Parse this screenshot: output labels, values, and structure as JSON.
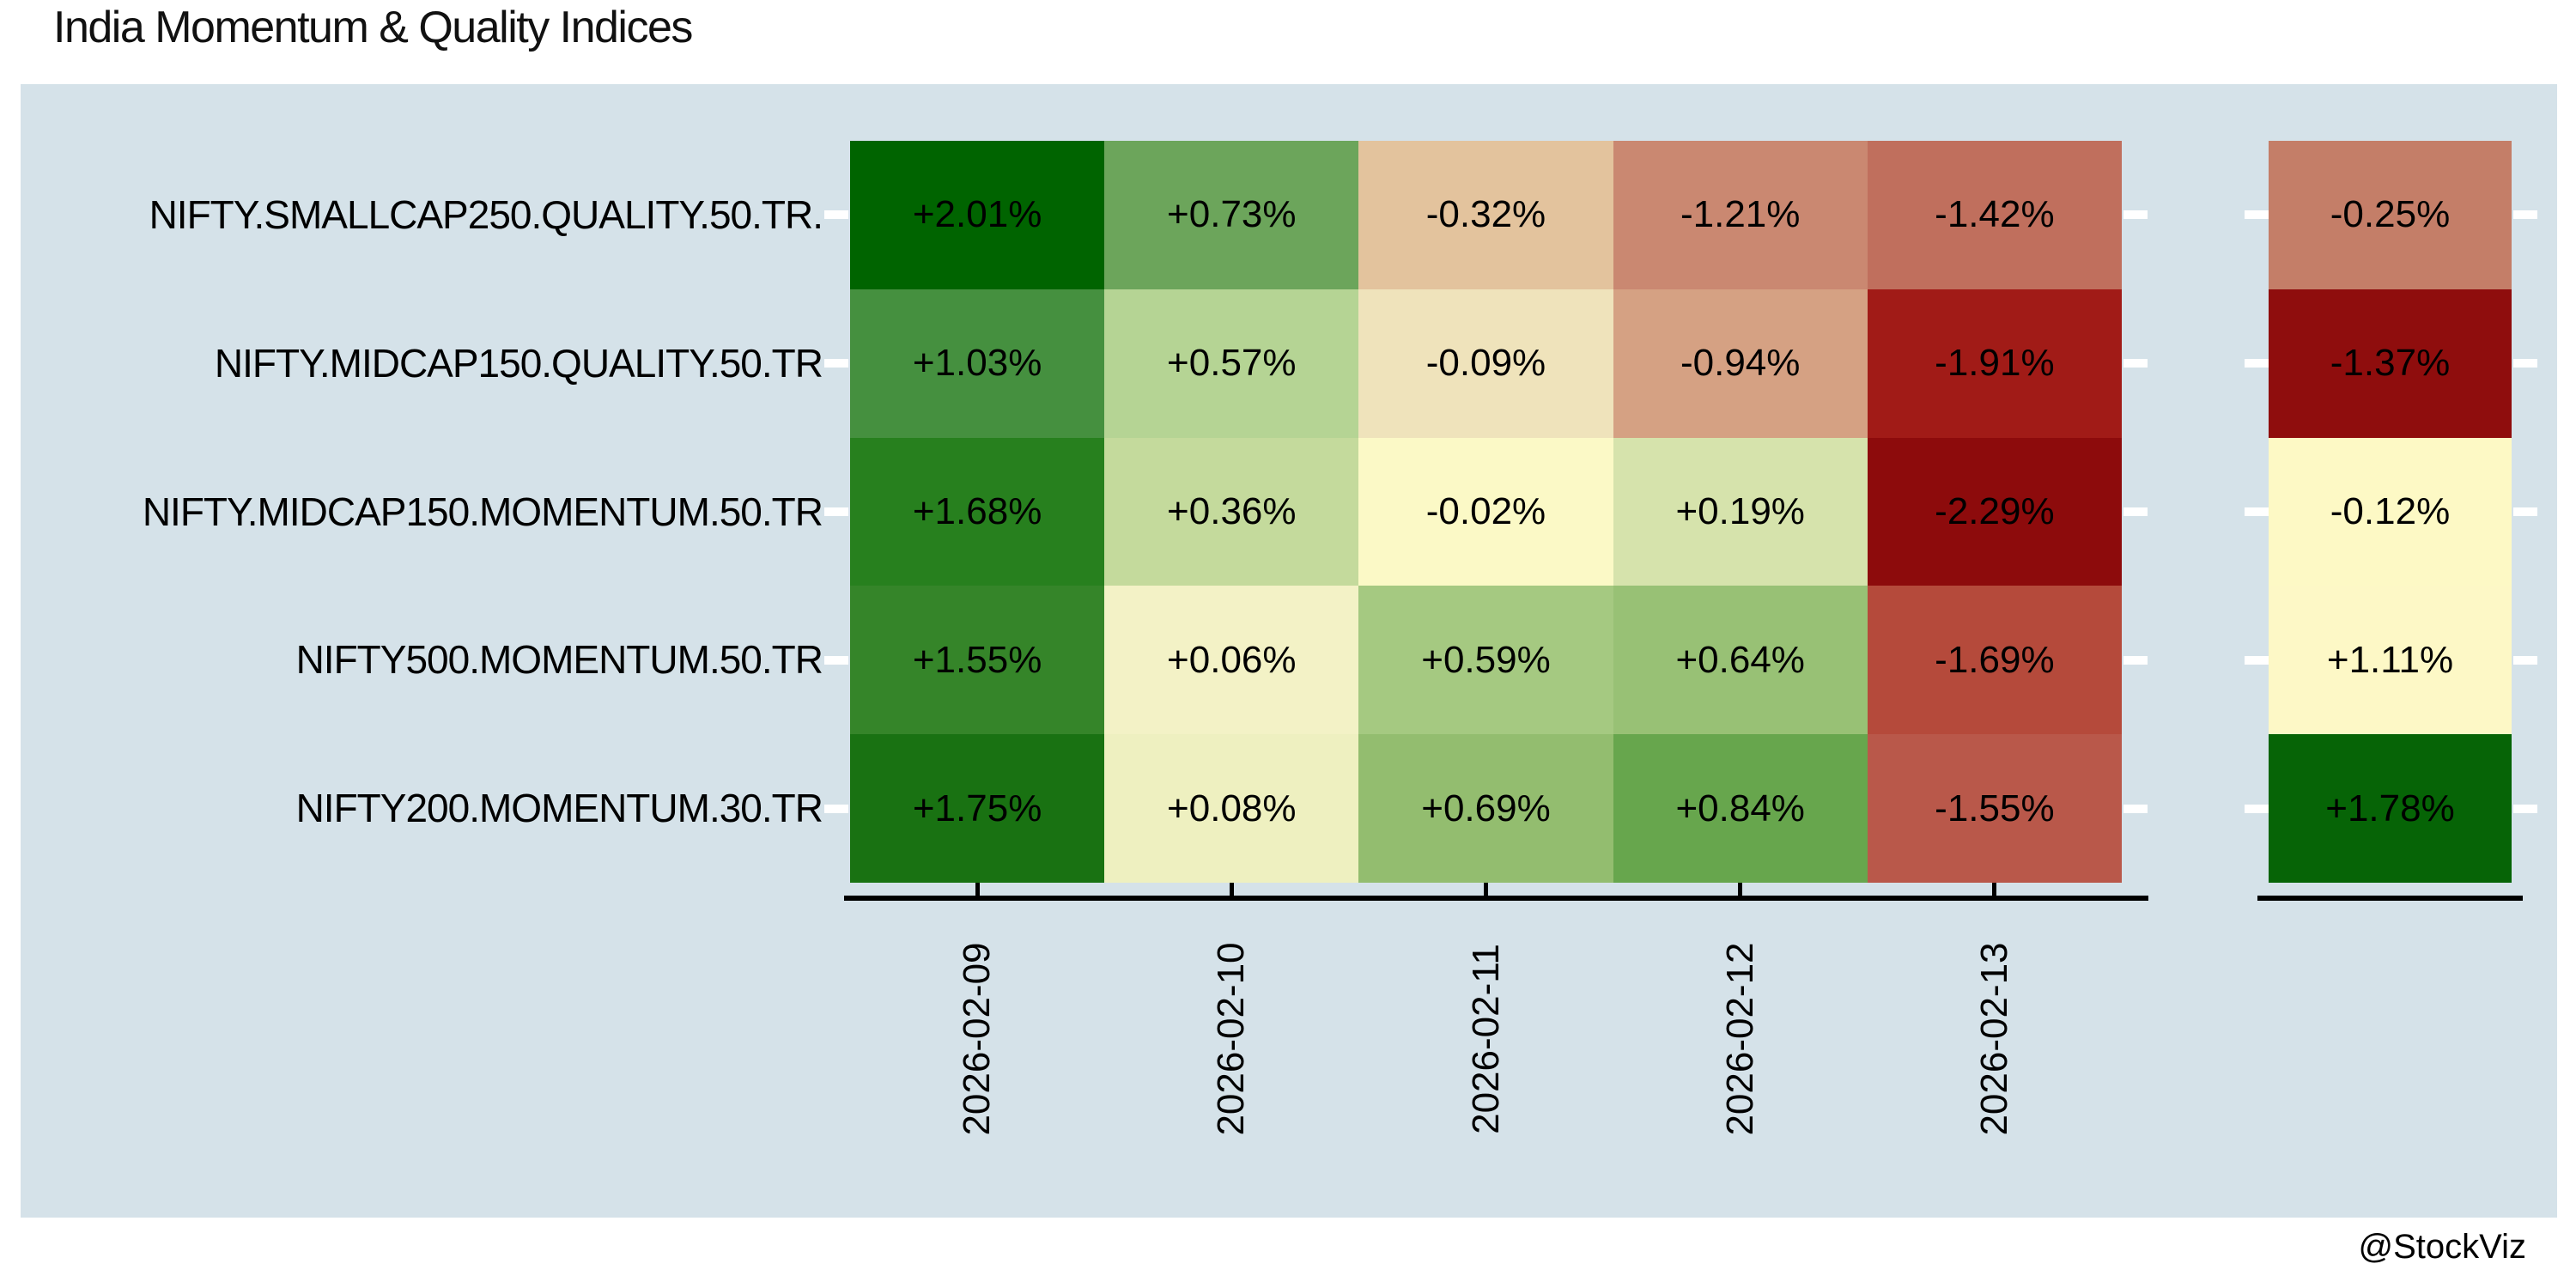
{
  "title": "India Momentum & Quality Indices",
  "watermark": "@StockViz",
  "chart_data": {
    "type": "heatmap",
    "title": "India Momentum & Quality Indices",
    "rows": [
      "NIFTY.SMALLCAP250.QUALITY.50.TR.",
      "NIFTY.MIDCAP150.QUALITY.50.TR",
      "NIFTY.MIDCAP150.MOMENTUM.50.TR",
      "NIFTY500.MOMENTUM.50.TR",
      "NIFTY200.MOMENTUM.30.TR"
    ],
    "columns": [
      "2026-02-09",
      "2026-02-10",
      "2026-02-11",
      "2026-02-12",
      "2026-02-13"
    ],
    "values_pct": [
      [
        2.01,
        0.73,
        -0.32,
        -1.21,
        -1.42
      ],
      [
        1.03,
        0.57,
        -0.09,
        -0.94,
        -1.91
      ],
      [
        1.68,
        0.36,
        -0.02,
        0.19,
        -2.29
      ],
      [
        1.55,
        0.06,
        0.59,
        0.64,
        -1.69
      ],
      [
        1.75,
        0.08,
        0.69,
        0.84,
        -1.55
      ]
    ],
    "cell_labels": [
      [
        "+2.01%",
        "+0.73%",
        "-0.32%",
        "-1.21%",
        "-1.42%"
      ],
      [
        "+1.03%",
        "+0.57%",
        "-0.09%",
        "-0.94%",
        "-1.91%"
      ],
      [
        "+1.68%",
        "+0.36%",
        "-0.02%",
        "+0.19%",
        "-2.29%"
      ],
      [
        "+1.55%",
        "+0.06%",
        "+0.59%",
        "+0.64%",
        "-1.69%"
      ],
      [
        "+1.75%",
        "+0.08%",
        "+0.69%",
        "+0.84%",
        "-1.55%"
      ]
    ],
    "cell_colors": [
      [
        "#006400",
        "#6ca55b",
        "#e3c39d",
        "#ca8871",
        "#c06f5d"
      ],
      [
        "#45903f",
        "#b5d494",
        "#efe3bb",
        "#d5a183",
        "#a11b17"
      ],
      [
        "#27801e",
        "#c4da9c",
        "#fbf9c6",
        "#d6e3ac",
        "#8d0b0c"
      ],
      [
        "#358529",
        "#f3f2c6",
        "#a5c981",
        "#98c175",
        "#b54a3b"
      ],
      [
        "#197212",
        "#eef0c0",
        "#93bd6f",
        "#67a64d",
        "#b9584a"
      ]
    ],
    "summary_column": {
      "labels": [
        "-0.25%",
        "-1.37%",
        "-0.12%",
        "+1.11%",
        "+1.78%"
      ],
      "values_pct": [
        -0.25,
        -1.37,
        -0.12,
        1.11,
        1.78
      ],
      "colors": [
        "#c47e68",
        "#8f0d0d",
        "#fdf9c5",
        "#fdf8c6",
        "#066406"
      ]
    },
    "colormap": "red-yellow-green",
    "plot_background": "#d5e2e9",
    "axis_color": "#000000",
    "inner_tick_color": "#ffffff",
    "grid": false,
    "legend": false
  }
}
